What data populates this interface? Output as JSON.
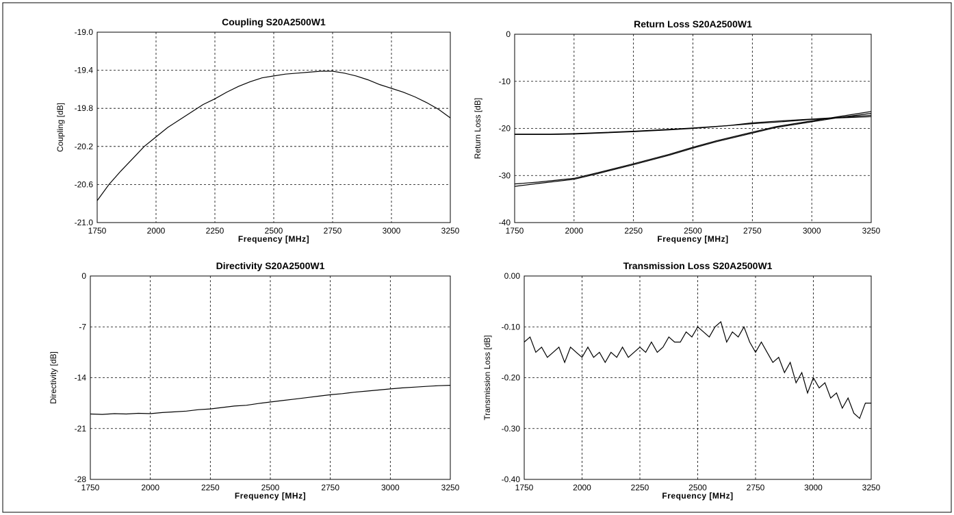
{
  "chart_data": [
    {
      "id": "coupling",
      "type": "line",
      "title": "Coupling S20A2500W1",
      "xlabel": "Frequency [MHz]",
      "ylabel": "Coupling [dB]",
      "xlim": [
        1750,
        3250
      ],
      "ylim": [
        -21.0,
        -19.0
      ],
      "xticks": [
        "1750",
        "2000",
        "2250",
        "2500",
        "2750",
        "3000",
        "3250"
      ],
      "yticks": [
        "-19.0",
        "-19.4",
        "-19.8",
        "-20.2",
        "-20.6",
        "-21.0"
      ],
      "grid": true,
      "series": [
        {
          "x": [
            1750,
            1800,
            1850,
            1900,
            1950,
            2000,
            2050,
            2100,
            2150,
            2200,
            2250,
            2300,
            2350,
            2400,
            2450,
            2500,
            2550,
            2600,
            2650,
            2700,
            2750,
            2800,
            2850,
            2900,
            2950,
            3000,
            3050,
            3100,
            3150,
            3200,
            3250
          ],
          "y": [
            -20.77,
            -20.6,
            -20.46,
            -20.33,
            -20.2,
            -20.1,
            -20.0,
            -19.92,
            -19.84,
            -19.76,
            -19.7,
            -19.63,
            -19.57,
            -19.52,
            -19.48,
            -19.46,
            -19.44,
            -19.43,
            -19.42,
            -19.41,
            -19.41,
            -19.43,
            -19.46,
            -19.5,
            -19.55,
            -19.59,
            -19.63,
            -19.68,
            -19.74,
            -19.81,
            -19.9
          ]
        }
      ]
    },
    {
      "id": "return-loss",
      "type": "line",
      "title": "Return Loss S20A2500W1",
      "xlabel": "Frequency [MHz]",
      "ylabel": "Return Loss [dB]",
      "xlim": [
        1750,
        3250
      ],
      "ylim": [
        -40,
        0
      ],
      "xticks": [
        "1750",
        "2000",
        "2250",
        "2500",
        "2750",
        "3000",
        "3250"
      ],
      "yticks": [
        "0",
        "-10",
        "-20",
        "-30",
        "-40"
      ],
      "grid": true,
      "series": [
        {
          "x": [
            1750,
            1900,
            2000,
            2100,
            2250,
            2400,
            2500,
            2650,
            2750,
            2900,
            3000,
            3100,
            3250
          ],
          "y": [
            -21.2,
            -21.2,
            -21.1,
            -20.9,
            -20.6,
            -20.2,
            -19.9,
            -19.4,
            -19.0,
            -18.5,
            -18.1,
            -17.8,
            -17.5
          ]
        },
        {
          "x": [
            1750,
            1900,
            2000,
            2100,
            2250,
            2400,
            2500,
            2650,
            2750,
            2900,
            3000,
            3100,
            3250
          ],
          "y": [
            -21.3,
            -21.3,
            -21.2,
            -21.0,
            -20.7,
            -20.3,
            -20.0,
            -19.4,
            -18.8,
            -18.3,
            -18.0,
            -17.7,
            -17.2
          ]
        },
        {
          "x": [
            1750,
            1850,
            2000,
            2100,
            2250,
            2400,
            2500,
            2600,
            2750,
            2850,
            3000,
            3100,
            3250
          ],
          "y": [
            -31.8,
            -31.4,
            -30.6,
            -29.4,
            -27.5,
            -25.5,
            -24.0,
            -22.6,
            -20.8,
            -19.6,
            -18.4,
            -17.6,
            -16.4
          ]
        },
        {
          "x": [
            1750,
            1850,
            2000,
            2100,
            2250,
            2400,
            2500,
            2600,
            2750,
            2850,
            3000,
            3100,
            3250
          ],
          "y": [
            -32.3,
            -31.7,
            -30.8,
            -29.6,
            -27.7,
            -25.7,
            -24.2,
            -22.8,
            -21.0,
            -19.8,
            -18.6,
            -17.8,
            -16.8
          ]
        }
      ]
    },
    {
      "id": "directivity",
      "type": "line",
      "title": "Directivity S20A2500W1",
      "xlabel": "Frequency [MHz]",
      "ylabel": "Directivity [dB]",
      "xlim": [
        1750,
        3250
      ],
      "ylim": [
        -28,
        0
      ],
      "xticks": [
        "1750",
        "2000",
        "2250",
        "2500",
        "2750",
        "3000",
        "3250"
      ],
      "yticks": [
        "0",
        "-7",
        "-14",
        "-21",
        "-28"
      ],
      "grid": true,
      "series": [
        {
          "x": [
            1750,
            1800,
            1850,
            1900,
            1950,
            2000,
            2050,
            2100,
            2150,
            2200,
            2250,
            2300,
            2350,
            2400,
            2450,
            2500,
            2550,
            2600,
            2650,
            2700,
            2750,
            2800,
            2850,
            2900,
            2950,
            3000,
            3050,
            3100,
            3150,
            3200,
            3250
          ],
          "y": [
            -19.0,
            -19.05,
            -18.95,
            -19.0,
            -18.9,
            -18.95,
            -18.8,
            -18.7,
            -18.6,
            -18.4,
            -18.3,
            -18.1,
            -17.9,
            -17.8,
            -17.55,
            -17.35,
            -17.15,
            -16.95,
            -16.75,
            -16.55,
            -16.35,
            -16.2,
            -16.0,
            -15.85,
            -15.7,
            -15.55,
            -15.4,
            -15.3,
            -15.2,
            -15.1,
            -15.05
          ]
        }
      ]
    },
    {
      "id": "transmission-loss",
      "type": "line",
      "title": "Transmission Loss S20A2500W1",
      "xlabel": "Frequency [MHz]",
      "ylabel": "Transmission Loss [dB]",
      "xlim": [
        1750,
        3250
      ],
      "ylim": [
        -0.4,
        0.0
      ],
      "xticks": [
        "1750",
        "2000",
        "2250",
        "2500",
        "2750",
        "3000",
        "3250"
      ],
      "yticks": [
        "0.00",
        "-0.10",
        "-0.20",
        "-0.30",
        "-0.40"
      ],
      "grid": true,
      "series": [
        {
          "x": [
            1750,
            1775,
            1800,
            1825,
            1850,
            1875,
            1900,
            1925,
            1950,
            1975,
            2000,
            2025,
            2050,
            2075,
            2100,
            2125,
            2150,
            2175,
            2200,
            2225,
            2250,
            2275,
            2300,
            2325,
            2350,
            2375,
            2400,
            2425,
            2450,
            2475,
            2500,
            2525,
            2550,
            2575,
            2600,
            2625,
            2650,
            2675,
            2700,
            2725,
            2750,
            2775,
            2800,
            2825,
            2850,
            2875,
            2900,
            2925,
            2950,
            2975,
            3000,
            3025,
            3050,
            3075,
            3100,
            3125,
            3150,
            3175,
            3200,
            3225,
            3250
          ],
          "y": [
            -0.13,
            -0.12,
            -0.15,
            -0.14,
            -0.16,
            -0.15,
            -0.14,
            -0.17,
            -0.14,
            -0.15,
            -0.16,
            -0.14,
            -0.16,
            -0.15,
            -0.17,
            -0.15,
            -0.16,
            -0.14,
            -0.16,
            -0.15,
            -0.14,
            -0.15,
            -0.13,
            -0.15,
            -0.14,
            -0.12,
            -0.13,
            -0.13,
            -0.11,
            -0.12,
            -0.1,
            -0.11,
            -0.12,
            -0.1,
            -0.09,
            -0.13,
            -0.11,
            -0.12,
            -0.1,
            -0.13,
            -0.15,
            -0.13,
            -0.15,
            -0.17,
            -0.16,
            -0.19,
            -0.17,
            -0.21,
            -0.19,
            -0.23,
            -0.2,
            -0.22,
            -0.21,
            -0.24,
            -0.23,
            -0.26,
            -0.24,
            -0.27,
            -0.28,
            -0.25,
            -0.25
          ]
        }
      ]
    }
  ]
}
